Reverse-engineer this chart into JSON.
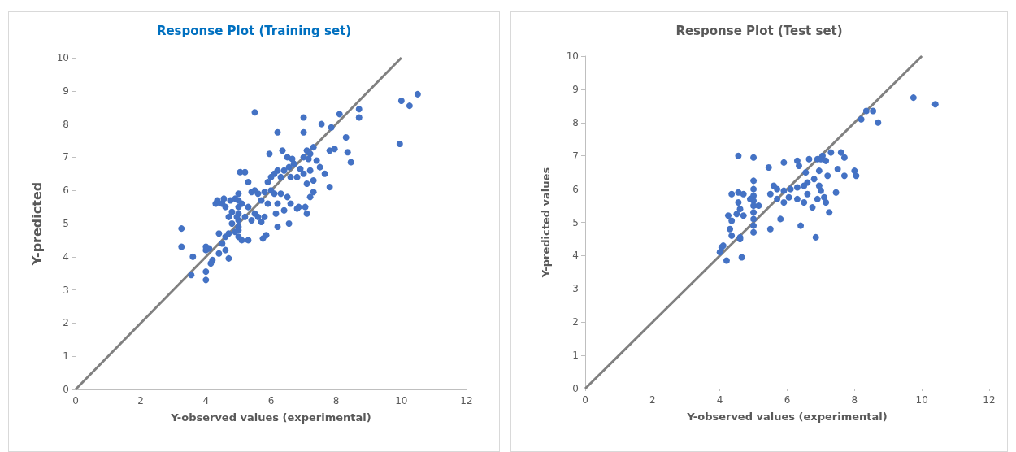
{
  "chart_data": [
    {
      "type": "scatter",
      "title": "Response Plot (Training set)",
      "xlabel": "Y-observed values (experimental)",
      "ylabel": "Y-predicted",
      "xlim": [
        0,
        12
      ],
      "xticks": [
        0,
        2,
        4,
        6,
        8,
        10,
        12
      ],
      "ylim": [
        0,
        10
      ],
      "yticks": [
        0,
        1,
        2,
        3,
        4,
        5,
        6,
        7,
        8,
        9,
        10
      ],
      "grid": false,
      "series": [
        {
          "type": "scatter",
          "marker": "circle",
          "color": "#4472c4",
          "x": [
            5.5,
            7.0,
            8.1,
            8.7,
            8.7,
            10.0,
            10.25,
            10.5,
            9.95,
            7.55,
            7.85,
            7.0,
            6.2,
            5.95,
            8.3,
            7.1,
            7.8,
            7.95,
            8.35,
            8.45,
            6.35,
            6.5,
            6.65,
            7.0,
            7.2,
            7.3,
            7.15,
            7.5,
            7.65,
            7.4,
            7.2,
            7.0,
            6.9,
            6.7,
            6.55,
            6.4,
            6.2,
            6.1,
            6.0,
            5.9,
            6.3,
            6.6,
            6.8,
            7.1,
            7.3,
            7.8,
            7.2,
            7.3,
            7.05,
            7.1,
            6.85,
            6.5,
            6.3,
            6.1,
            6.0,
            5.8,
            5.6,
            5.4,
            5.3,
            5.2,
            5.05,
            5.5,
            5.7,
            5.9,
            6.2,
            6.4,
            6.6,
            6.8,
            6.55,
            6.2,
            5.75,
            5.85,
            6.15,
            5.5,
            5.4,
            5.3,
            5.1,
            5.0,
            5.0,
            5.0,
            5.0,
            5.0,
            5.0,
            5.0,
            5.1,
            5.3,
            5.0,
            4.9,
            4.8,
            4.7,
            4.6,
            4.5,
            4.3,
            4.35,
            4.55,
            4.75,
            4.9,
            4.8,
            4.7,
            4.6,
            4.5,
            4.6,
            4.4,
            4.7,
            4.4,
            4.2,
            4.0,
            4.1,
            4.0,
            4.15,
            4.0,
            4.0,
            3.55,
            3.6,
            3.25,
            3.25,
            5.6,
            5.8,
            5.7,
            5.2,
            4.95
          ],
          "values": [
            8.35,
            8.2,
            8.3,
            8.45,
            8.2,
            8.7,
            8.55,
            8.9,
            7.4,
            8.0,
            7.9,
            7.75,
            7.75,
            7.1,
            7.6,
            7.2,
            7.2,
            7.25,
            7.15,
            6.85,
            7.2,
            7.0,
            6.95,
            7.0,
            7.1,
            7.3,
            6.95,
            6.7,
            6.5,
            6.9,
            6.6,
            6.5,
            6.65,
            6.8,
            6.7,
            6.6,
            6.6,
            6.5,
            6.4,
            6.25,
            6.4,
            6.4,
            6.4,
            6.2,
            6.3,
            6.1,
            5.8,
            5.95,
            5.5,
            5.3,
            5.5,
            5.8,
            5.9,
            5.9,
            6.0,
            5.95,
            5.9,
            5.95,
            6.25,
            6.55,
            6.55,
            6.0,
            5.7,
            5.6,
            5.6,
            5.4,
            5.6,
            5.45,
            5.0,
            4.9,
            4.55,
            4.65,
            5.3,
            5.3,
            5.1,
            5.5,
            5.6,
            5.9,
            5.7,
            5.5,
            5.3,
            5.1,
            4.9,
            4.8,
            4.5,
            4.5,
            4.6,
            4.75,
            5.0,
            5.2,
            5.5,
            5.6,
            5.6,
            5.7,
            5.75,
            5.7,
            5.75,
            5.35,
            4.7,
            4.6,
            4.4,
            4.2,
            4.7,
            3.95,
            4.1,
            3.9,
            4.2,
            4.25,
            4.3,
            3.8,
            3.55,
            3.3,
            3.45,
            4.0,
            4.3,
            4.85,
            5.2,
            5.2,
            5.05,
            5.2,
            5.2
          ]
        },
        {
          "type": "line",
          "marker": "none",
          "line_style": "solid",
          "color": "#808080",
          "x": [
            0,
            10
          ],
          "values": [
            0,
            10
          ]
        }
      ]
    },
    {
      "type": "scatter",
      "title": "Response Plot (Test set)",
      "xlabel": "Y-observed values (experimental)",
      "ylabel": "Y-predicted values",
      "xlim": [
        0,
        12
      ],
      "xticks": [
        0,
        2,
        4,
        6,
        8,
        10,
        12
      ],
      "ylim": [
        0,
        10
      ],
      "yticks": [
        0,
        1,
        2,
        3,
        4,
        5,
        6,
        7,
        8,
        9,
        10
      ],
      "grid": false,
      "series": [
        {
          "type": "scatter",
          "marker": "circle",
          "color": "#4472c4",
          "x": [
            8.2,
            8.35,
            8.55,
            8.7,
            9.75,
            10.4,
            4.55,
            5.0,
            5.45,
            5.9,
            6.3,
            6.35,
            6.55,
            6.65,
            6.9,
            7.05,
            7.0,
            7.15,
            7.3,
            7.6,
            7.7,
            7.5,
            7.7,
            8.0,
            8.05,
            7.2,
            6.95,
            6.8,
            6.6,
            6.5,
            6.3,
            6.1,
            5.9,
            5.7,
            5.6,
            5.5,
            5.7,
            5.9,
            6.05,
            6.3,
            6.5,
            6.6,
            6.75,
            6.9,
            7.1,
            7.0,
            6.95,
            7.15,
            7.45,
            7.25,
            6.4,
            6.85,
            5.8,
            5.5,
            5.0,
            5.0,
            5.0,
            5.0,
            5.0,
            5.0,
            5.0,
            5.0,
            5.0,
            5.15,
            4.9,
            4.7,
            4.55,
            4.35,
            4.55,
            4.6,
            4.7,
            4.5,
            4.35,
            4.3,
            4.35,
            4.25,
            4.05,
            4.0,
            4.1,
            4.2,
            4.6,
            4.6,
            4.65
          ],
          "values": [
            8.1,
            8.35,
            8.35,
            8.0,
            8.75,
            8.55,
            7.0,
            6.95,
            6.65,
            6.8,
            6.85,
            6.7,
            6.5,
            6.9,
            6.9,
            7.0,
            6.9,
            6.85,
            7.1,
            7.1,
            6.95,
            6.6,
            6.4,
            6.55,
            6.4,
            6.4,
            6.55,
            6.3,
            6.2,
            6.1,
            6.05,
            6.0,
            5.95,
            6.0,
            6.1,
            5.85,
            5.7,
            5.6,
            5.75,
            5.7,
            5.6,
            5.85,
            5.45,
            5.7,
            5.75,
            5.95,
            6.1,
            5.6,
            5.9,
            5.3,
            4.9,
            4.55,
            5.1,
            4.8,
            6.25,
            6.0,
            5.8,
            5.65,
            5.5,
            5.3,
            5.1,
            4.9,
            4.7,
            5.5,
            5.7,
            5.85,
            5.9,
            5.85,
            5.6,
            5.4,
            5.2,
            5.25,
            5.05,
            4.8,
            4.6,
            5.2,
            4.25,
            4.1,
            4.3,
            3.85,
            4.55,
            4.5,
            3.95
          ]
        },
        {
          "type": "line",
          "marker": "none",
          "line_style": "solid",
          "color": "#808080",
          "x": [
            0,
            10
          ],
          "values": [
            0,
            10
          ]
        }
      ]
    }
  ]
}
